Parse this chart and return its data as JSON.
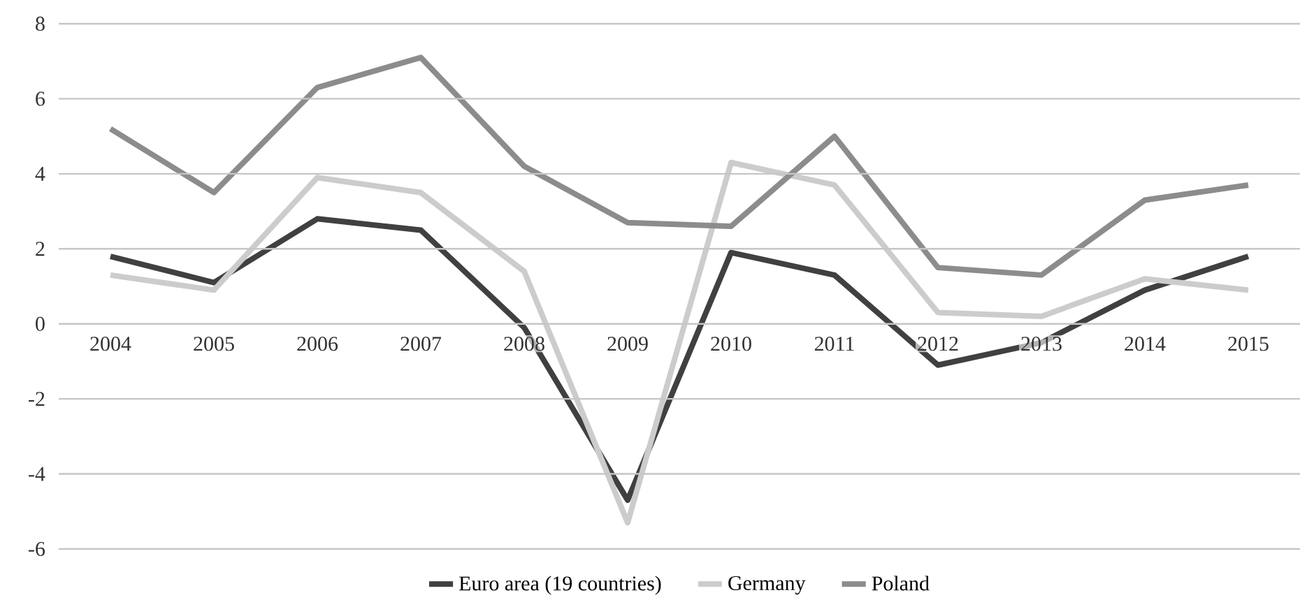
{
  "chart_data": {
    "type": "line",
    "categories": [
      "2004",
      "2005",
      "2006",
      "2007",
      "2008",
      "2009",
      "2010",
      "2011",
      "2012",
      "2013",
      "2014",
      "2015"
    ],
    "series": [
      {
        "name": "Euro area (19 countries)",
        "color": "#404040",
        "values": [
          1.8,
          1.1,
          2.8,
          2.5,
          -0.1,
          -4.7,
          1.9,
          1.3,
          -1.1,
          -0.5,
          0.9,
          1.8
        ]
      },
      {
        "name": "Germany",
        "color": "#cccccc",
        "values": [
          1.3,
          0.9,
          3.9,
          3.5,
          1.4,
          -5.3,
          4.3,
          3.7,
          0.3,
          0.2,
          1.2,
          0.9
        ]
      },
      {
        "name": "Poland",
        "color": "#8c8c8c",
        "values": [
          5.2,
          3.5,
          6.3,
          7.1,
          4.2,
          2.7,
          2.6,
          5.0,
          1.5,
          1.3,
          3.3,
          3.7
        ]
      }
    ],
    "ylim": [
      -6,
      8
    ],
    "yticks": [
      -6,
      -4,
      -2,
      0,
      2,
      4,
      6,
      8
    ],
    "grid": "y",
    "legend": "bottom",
    "line_style": "solid",
    "marker": "none"
  }
}
